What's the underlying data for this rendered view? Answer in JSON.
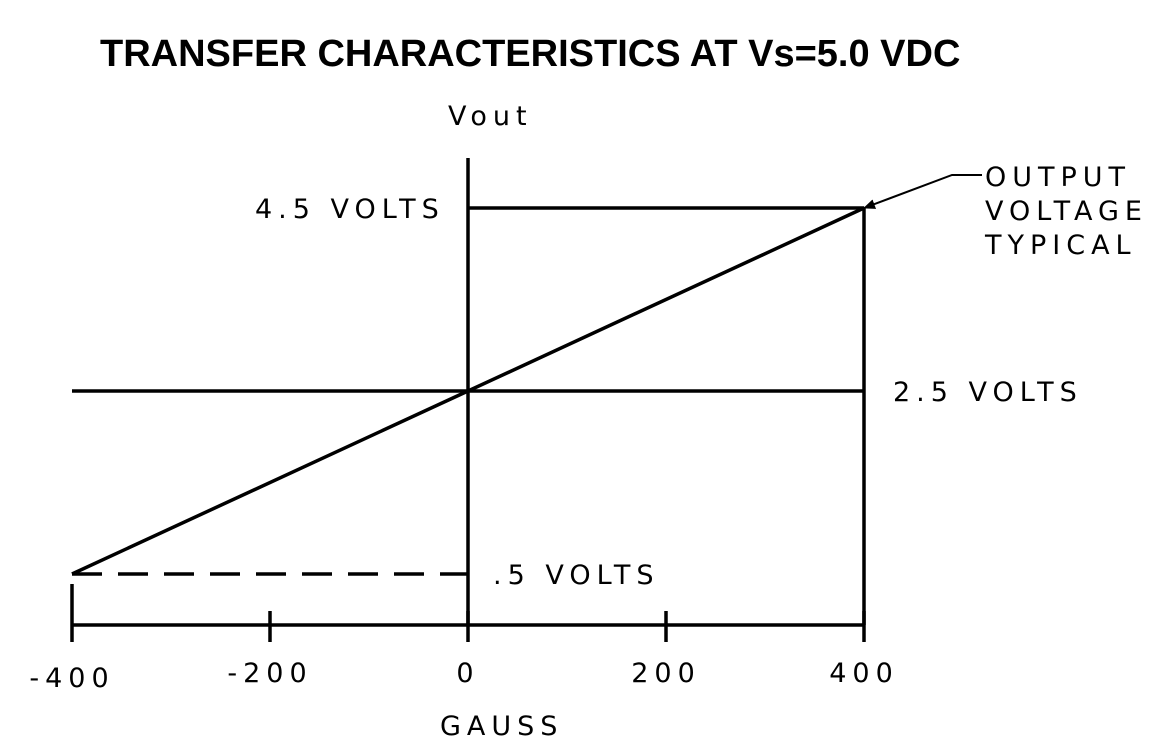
{
  "chart_data": {
    "type": "line",
    "title": "TRANSFER CHARACTERISTICS AT Vs=5.0 VDC",
    "xlabel": "GAUSS",
    "ylabel": "Vout",
    "xlim": [
      -400,
      400
    ],
    "ylim": [
      0,
      4.5
    ],
    "x_ticks": [
      -400,
      -200,
      0,
      200,
      400
    ],
    "x_tick_labels": [
      "-400",
      "-200",
      "0",
      "200",
      "400"
    ],
    "series": [
      {
        "x": [
          -400,
          0,
          400
        ],
        "values": [
          0.5,
          2.5,
          4.5
        ]
      }
    ],
    "reference_lines": [
      {
        "value": 4.5,
        "label": "4.5 VOLTS",
        "style": "solid"
      },
      {
        "value": 2.5,
        "label": "2.5 VOLTS",
        "style": "solid"
      },
      {
        "value": 0.5,
        "label": ".5 VOLTS",
        "style": "dashed"
      }
    ],
    "annotation": {
      "lines": [
        "OUTPUT",
        "VOLTAGE",
        "TYPICAL"
      ],
      "points_to": {
        "x": 400,
        "y": 4.5
      }
    },
    "grid": false
  }
}
